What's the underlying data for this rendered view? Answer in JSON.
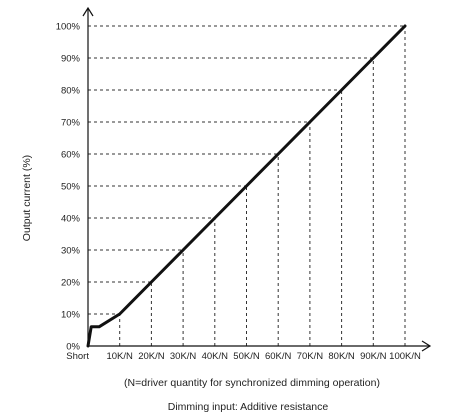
{
  "chart_data": {
    "type": "line",
    "title": "",
    "ylabel": "Output current (%)",
    "xlabel": "Dimming input: Additive resistance",
    "x_note": "(N=driver quantity for synchronized dimming operation)",
    "x_tick_labels": [
      "Short",
      "10K/N",
      "20K/N",
      "30K/N",
      "40K/N",
      "50K/N",
      "60K/N",
      "70K/N",
      "80K/N",
      "90K/N",
      "100K/N"
    ],
    "y_tick_labels": [
      "0%",
      "10%",
      "20%",
      "30%",
      "40%",
      "50%",
      "60%",
      "70%",
      "80%",
      "90%",
      "100%"
    ],
    "xlim": [
      0,
      10
    ],
    "ylim": [
      0,
      100
    ],
    "series": [
      {
        "x": [
          0,
          0.1,
          0.35,
          1,
          2,
          3,
          4,
          5,
          6,
          7,
          8,
          9,
          10
        ],
        "y": [
          0,
          6,
          6,
          10,
          20,
          30,
          40,
          50,
          60,
          70,
          80,
          90,
          100
        ],
        "color": "#111111"
      }
    ],
    "guide_x": [
      1,
      2,
      3,
      4,
      5,
      6,
      7,
      8,
      9,
      10
    ],
    "grid": false
  }
}
